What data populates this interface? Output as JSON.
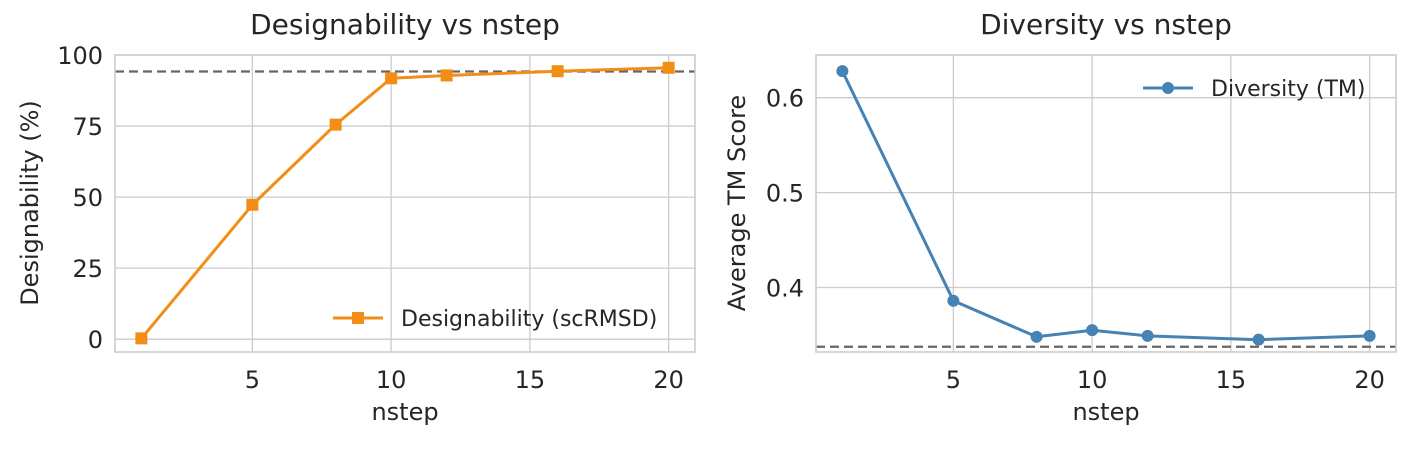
{
  "chart_data": [
    {
      "type": "line",
      "title": "Designability vs nstep",
      "xlabel": "nstep",
      "ylabel": "Designability (%)",
      "xlim": [
        0.05,
        20.95
      ],
      "ylim": [
        -4.5,
        100
      ],
      "xticks": [
        5,
        10,
        15,
        20
      ],
      "yticks": [
        0,
        25,
        50,
        75,
        100
      ],
      "grid": true,
      "legend_position": "lower-right",
      "reference_line": 94.2,
      "series": [
        {
          "name": "Designability (scRMSD)",
          "color": "#f28e16",
          "marker": "square",
          "x": [
            1,
            5,
            8,
            10,
            12,
            16,
            20
          ],
          "y": [
            0.3,
            47.3,
            75.5,
            91.8,
            92.8,
            94.3,
            95.5
          ]
        }
      ]
    },
    {
      "type": "line",
      "title": "Diversity vs nstep",
      "xlabel": "nstep",
      "ylabel": "Average TM Score",
      "xlim": [
        0.05,
        20.95
      ],
      "ylim": [
        0.332,
        0.645
      ],
      "xticks": [
        5,
        10,
        15,
        20
      ],
      "yticks": [
        0.4,
        0.5,
        0.6
      ],
      "grid": true,
      "legend_position": "upper-right",
      "reference_line": 0.3375,
      "series": [
        {
          "name": "Diversity (TM)",
          "color": "#4682b4",
          "marker": "circle",
          "x": [
            1,
            5,
            8,
            10,
            12,
            16,
            20
          ],
          "y": [
            0.628,
            0.386,
            0.348,
            0.355,
            0.349,
            0.345,
            0.349
          ]
        }
      ]
    }
  ]
}
